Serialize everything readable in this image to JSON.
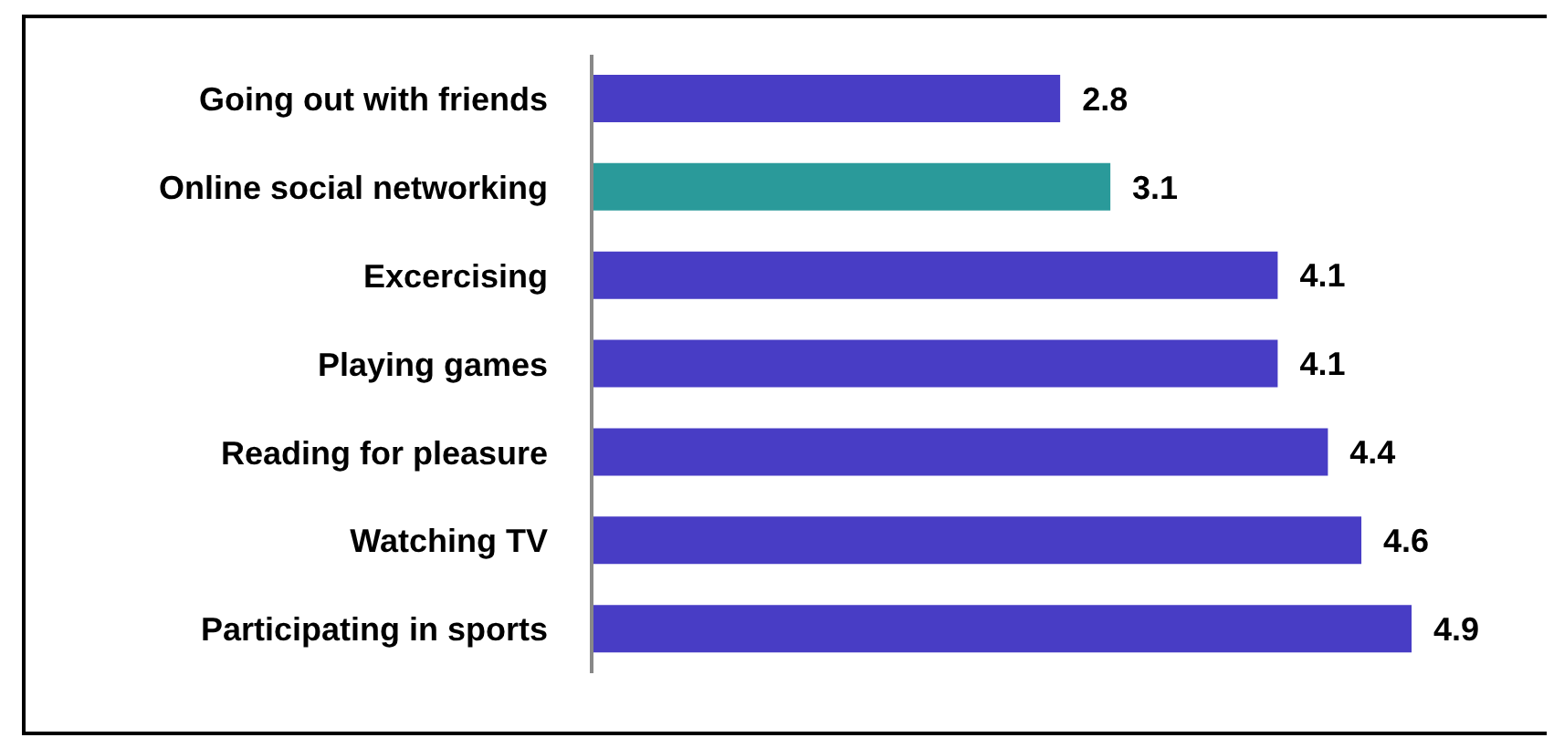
{
  "chart_data": {
    "type": "bar",
    "orientation": "horizontal",
    "categories": [
      "Going out with friends",
      "Online social networking",
      "Excercising",
      "Playing games",
      "Reading for pleasure",
      "Watching TV",
      "Participating in sports"
    ],
    "values": [
      2.8,
      3.1,
      4.1,
      4.1,
      4.4,
      4.6,
      4.9
    ],
    "colors": [
      "#483dc5",
      "#2a9a9a",
      "#483dc5",
      "#483dc5",
      "#483dc5",
      "#483dc5",
      "#483dc5"
    ],
    "data_labels": true,
    "tick_labels": "y",
    "grid": false
  }
}
